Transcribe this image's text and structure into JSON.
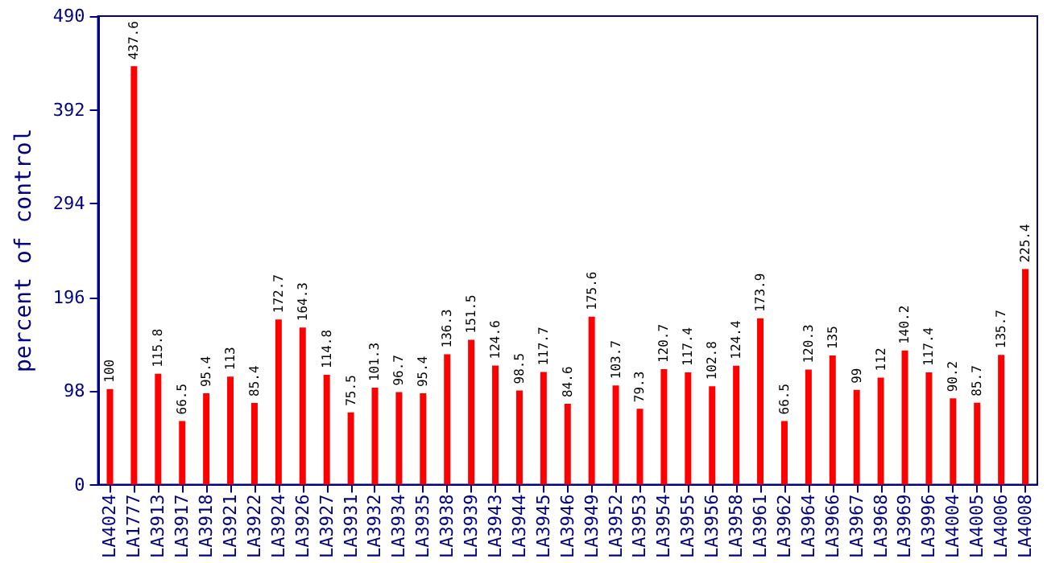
{
  "chart_data": {
    "type": "bar",
    "ylabel": "percent of control",
    "categories": [
      "LA4024",
      "LA1777",
      "LA3913",
      "LA3917",
      "LA3918",
      "LA3921",
      "LA3922",
      "LA3924",
      "LA3926",
      "LA3927",
      "LA3931",
      "LA3932",
      "LA3934",
      "LA3935",
      "LA3938",
      "LA3939",
      "LA3943",
      "LA3944",
      "LA3945",
      "LA3946",
      "LA3949",
      "LA3952",
      "LA3953",
      "LA3954",
      "LA3955",
      "LA3956",
      "LA3958",
      "LA3961",
      "LA3962",
      "LA3964",
      "LA3966",
      "LA3967",
      "LA3968",
      "LA3969",
      "LA3996",
      "LA4004",
      "LA4005",
      "LA4006",
      "LA4008"
    ],
    "values": [
      100,
      437.6,
      115.8,
      66.5,
      95.4,
      113,
      85.4,
      172.7,
      164.3,
      114.8,
      75.5,
      101.3,
      96.7,
      95.4,
      136.3,
      151.5,
      124.6,
      98.5,
      117.7,
      84.6,
      175.6,
      103.7,
      79.3,
      120.7,
      117.4,
      102.8,
      124.4,
      173.9,
      66.5,
      120.3,
      135,
      99,
      112,
      140.2,
      117.4,
      90.2,
      85.7,
      135.7,
      225.4
    ],
    "color": "#ff0000",
    "ylim": [
      0,
      490
    ],
    "yticks": [
      0,
      98,
      196,
      294,
      392,
      490
    ],
    "data_labels": true,
    "grid": false
  }
}
